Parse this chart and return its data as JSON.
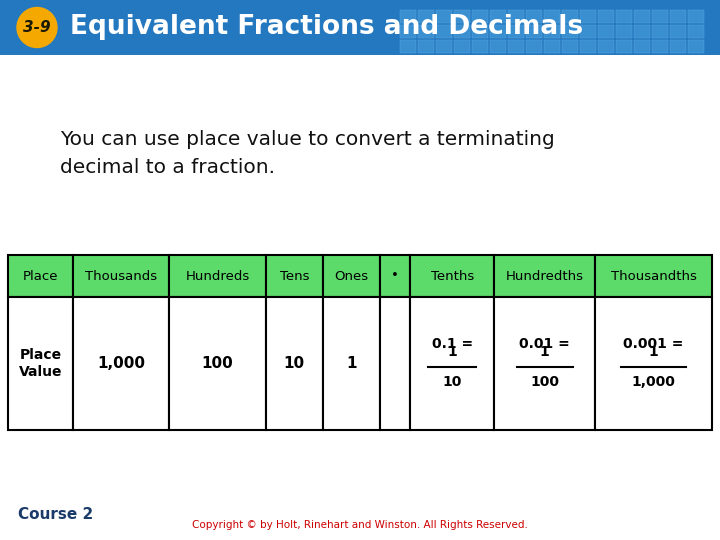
{
  "title": "Equivalent Fractions and Decimals",
  "lesson_num": "3-9",
  "header_bg": "#2478c0",
  "header_bg2": "#3a8fd1",
  "badge_color": "#f5a800",
  "badge_text_color": "#1a1a00",
  "body_bg": "#f0f0f0",
  "body_text": "You can use place value to convert a terminating\ndecimal to a fraction.",
  "body_text_color": "#111111",
  "table_header_bg": "#5ddb6a",
  "table_header_color": "#000000",
  "table_border_color": "#000000",
  "table_row1": [
    "Place",
    "Thousands",
    "Hundreds",
    "Tens",
    "Ones",
    "•",
    "Tenths",
    "Hundredths",
    "Thousandths"
  ],
  "table_row2_right": [
    {
      "top": "0.1 =",
      "num": "1",
      "den": "10"
    },
    {
      "top": "0.01 =",
      "num": "1",
      "den": "100"
    },
    {
      "top": "0.001 =",
      "num": "1",
      "den": "1,000"
    }
  ],
  "footer_text": "Course 2",
  "footer_color": "#1a3a6a",
  "copyright_text": "Copyright © by Holt, Rinehart and Winston. All Rights Reserved.",
  "copyright_color": "#cc0000",
  "tile_color1": "#3a8fd1",
  "tile_color2": "#2c7ab8"
}
